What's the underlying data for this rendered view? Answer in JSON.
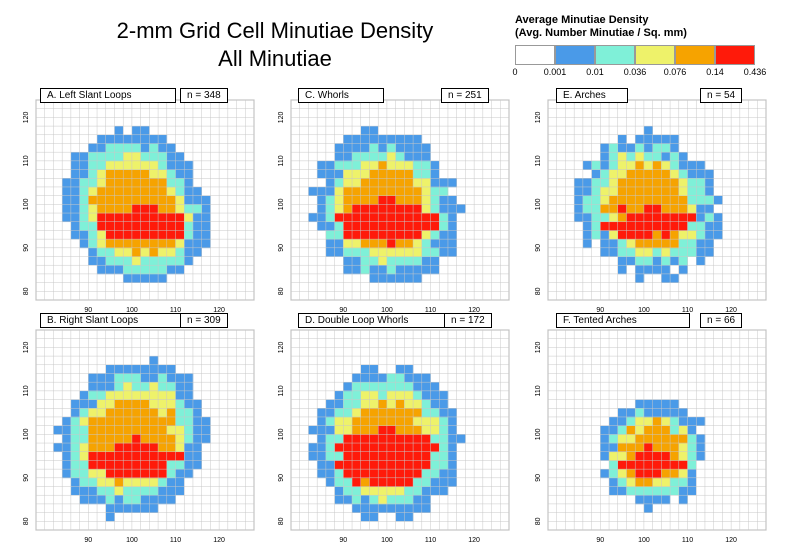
{
  "title_line1": "2-mm Grid Cell Minutiae Density",
  "title_line2": "All Minutiae",
  "legend": {
    "title_line1": "Average Minutiae Density",
    "title_line2": "(Avg. Number Minutiae / Sq. mm)",
    "colors": [
      "#ffffff",
      "#4a9ae8",
      "#7ff0d8",
      "#eef26a",
      "#f6a300",
      "#ff1a0a"
    ],
    "labels": [
      "0",
      "0.001",
      "0.01",
      "0.036",
      "0.076",
      "0.14",
      "0.436"
    ]
  },
  "chart_data": [
    {
      "type": "heatmap",
      "title": "A. Left Slant Loops",
      "n_label": "n = 348",
      "x_ticks": [
        "90",
        "100",
        "110",
        "120"
      ],
      "x_tick_values": [
        90,
        100,
        110,
        120
      ],
      "y_ticks": [
        "120",
        "110",
        "100",
        "90",
        "80"
      ],
      "y_tick_values": [
        120,
        110,
        100,
        90,
        80
      ],
      "xlim": [
        78,
        128
      ],
      "ylim": [
        78,
        124
      ],
      "profile": {
        "center": [
          101,
          98
        ],
        "radii": [
          16.5,
          19
        ],
        "shift": -0.16,
        "red_peak": [
          102,
          94.5
        ],
        "red_peak_size": 0.22
      }
    },
    {
      "type": "heatmap",
      "title": "C. Whorls",
      "n_label": "n = 251",
      "x_ticks": [
        "90",
        "100",
        "110",
        "120"
      ],
      "x_tick_values": [
        90,
        100,
        110,
        120
      ],
      "y_ticks": [
        "120",
        "110",
        "100",
        "90",
        "80"
      ],
      "y_tick_values": [
        120,
        110,
        100,
        90,
        80
      ],
      "xlim": [
        78,
        128
      ],
      "ylim": [
        78,
        124
      ],
      "profile": {
        "center": [
          100,
          98
        ],
        "radii": [
          16.5,
          19
        ],
        "shift": -0.1,
        "red_peak": [
          100,
          95
        ],
        "red_peak_size": 0.26
      }
    },
    {
      "type": "heatmap",
      "title": "E. Arches",
      "n_label": "n = 54",
      "x_ticks": [
        "90",
        "100",
        "110",
        "120"
      ],
      "x_tick_values": [
        90,
        100,
        110,
        120
      ],
      "y_ticks": [
        "120",
        "110",
        "100",
        "90",
        "80"
      ],
      "y_tick_values": [
        120,
        110,
        100,
        90,
        80
      ],
      "xlim": [
        78,
        128
      ],
      "ylim": [
        78,
        124
      ],
      "profile": {
        "center": [
          101,
          99
        ],
        "radii": [
          16,
          18
        ],
        "shift": -0.12,
        "red_peak": [
          101,
          95
        ],
        "red_peak_size": 0.2,
        "noise": 0.7
      }
    },
    {
      "type": "heatmap",
      "title": "B. Right Slant Loops",
      "n_label": "n = 309",
      "x_ticks": [
        "90",
        "100",
        "110",
        "120"
      ],
      "x_tick_values": [
        90,
        100,
        110,
        120
      ],
      "y_ticks": [
        "120",
        "110",
        "100",
        "90",
        "80"
      ],
      "y_tick_values": [
        120,
        110,
        100,
        90,
        80
      ],
      "xlim": [
        78,
        128
      ],
      "ylim": [
        78,
        124
      ],
      "profile": {
        "center": [
          100,
          98
        ],
        "radii": [
          17,
          19
        ],
        "shift": 0.14,
        "red_peak": [
          101,
          93
        ],
        "red_peak_size": 0.22
      }
    },
    {
      "type": "heatmap",
      "title": "D. Double Loop Whorls",
      "n_label": "n = 172",
      "x_ticks": [
        "90",
        "100",
        "110",
        "120"
      ],
      "x_tick_values": [
        90,
        100,
        110,
        120
      ],
      "y_ticks": [
        "120",
        "110",
        "100",
        "90",
        "80"
      ],
      "y_tick_values": [
        120,
        110,
        100,
        90,
        80
      ],
      "xlim": [
        78,
        128
      ],
      "ylim": [
        78,
        124
      ],
      "profile": {
        "center": [
          100,
          97
        ],
        "radii": [
          17,
          19
        ],
        "shift": 0,
        "red_peak": [
          100,
          93
        ],
        "red_peak_size": 0.34
      }
    },
    {
      "type": "heatmap",
      "title": "F. Tented Arches",
      "n_label": "n = 66",
      "x_ticks": [
        "90",
        "100",
        "110",
        "120"
      ],
      "x_tick_values": [
        90,
        100,
        110,
        120
      ],
      "y_ticks": [
        "120",
        "110",
        "100",
        "90",
        "80"
      ],
      "y_tick_values": [
        120,
        110,
        100,
        90,
        80
      ],
      "xlim": [
        78,
        128
      ],
      "ylim": [
        78,
        124
      ],
      "profile": {
        "center": [
          102,
          95
        ],
        "radii": [
          12.5,
          13
        ],
        "shift": 0,
        "red_peak": [
          102,
          93
        ],
        "red_peak_size": 0.22,
        "noise": 0.5
      }
    }
  ]
}
